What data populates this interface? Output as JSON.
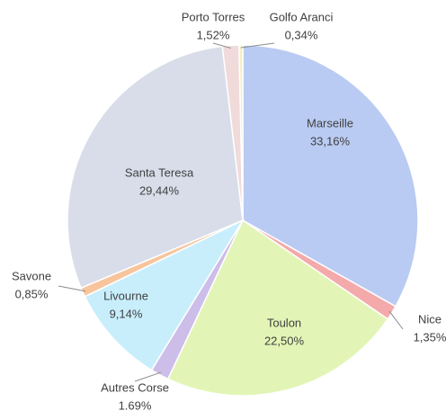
{
  "chart_data": {
    "type": "pie",
    "categories": [
      "Marseille",
      "Nice",
      "Toulon",
      "Autres Corse",
      "Livourne",
      "Savone",
      "Santa Teresa",
      "Porto Torres",
      "Golfo Aranci"
    ],
    "values": [
      33.16,
      1.35,
      22.5,
      1.69,
      9.14,
      0.85,
      29.44,
      1.52,
      0.34
    ],
    "value_labels": [
      "33,16%",
      "1,35%",
      "22,50%",
      "1.69%",
      "9,14%",
      "0,85%",
      "29,44%",
      "1,52%",
      "0,34%"
    ],
    "colors": [
      "#b9cbf2",
      "#f4a9ab",
      "#e2f5b6",
      "#cdbde9",
      "#c8eefc",
      "#f7c49c",
      "#d8dde9",
      "#f1dada",
      "#f3efc2"
    ],
    "start_angle": 90,
    "direction": "clockwise"
  }
}
